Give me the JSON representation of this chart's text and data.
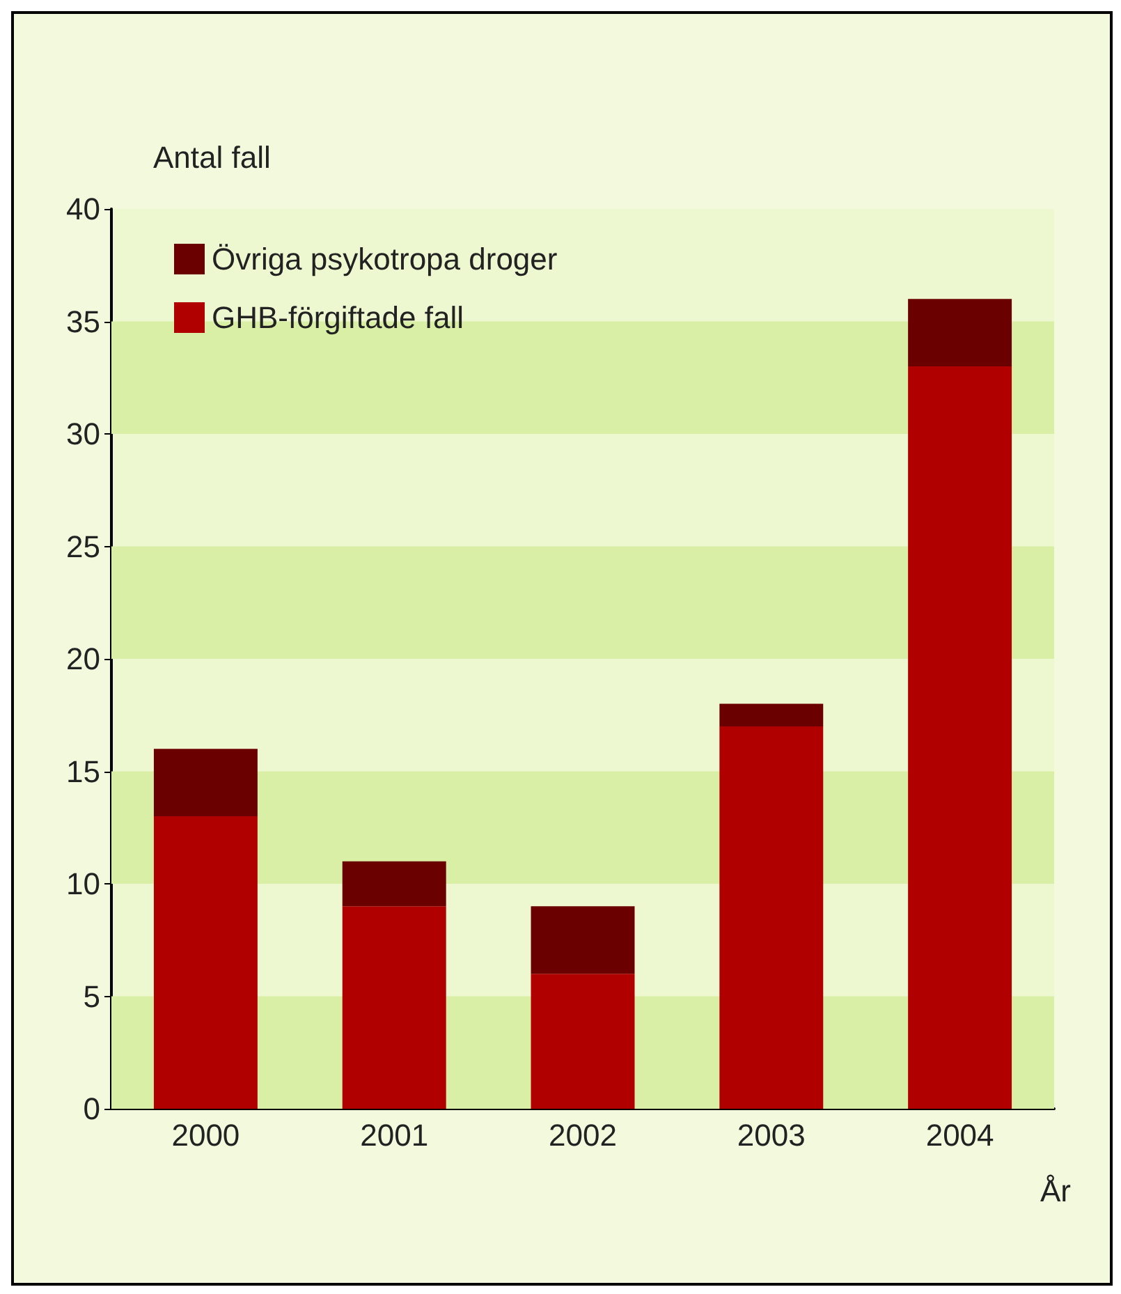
{
  "chart_data": {
    "type": "bar",
    "stacked": true,
    "categories": [
      "2000",
      "2001",
      "2002",
      "2003",
      "2004"
    ],
    "series": [
      {
        "name": "GHB-förgiftade fall",
        "color": "#b00000",
        "values": [
          13,
          9,
          6,
          17,
          33
        ]
      },
      {
        "name": "Övriga psykotropa droger",
        "color": "#6a0000",
        "values": [
          3,
          2,
          3,
          1,
          3
        ]
      }
    ],
    "xlabel": "År",
    "ylabel": "Antal fall",
    "ylim": [
      0,
      40
    ],
    "yticks": [
      0,
      5,
      10,
      15,
      20,
      25,
      30,
      35,
      40
    ],
    "bands": [
      {
        "axis": "y",
        "from": 0,
        "to": 5,
        "color": "#d9efa6"
      },
      {
        "axis": "y",
        "from": 10,
        "to": 15,
        "color": "#d9efa6"
      },
      {
        "axis": "y",
        "from": 20,
        "to": 25,
        "color": "#d9efa6"
      },
      {
        "axis": "y",
        "from": 30,
        "to": 35,
        "color": "#d9efa6"
      }
    ],
    "legend": "top left"
  }
}
